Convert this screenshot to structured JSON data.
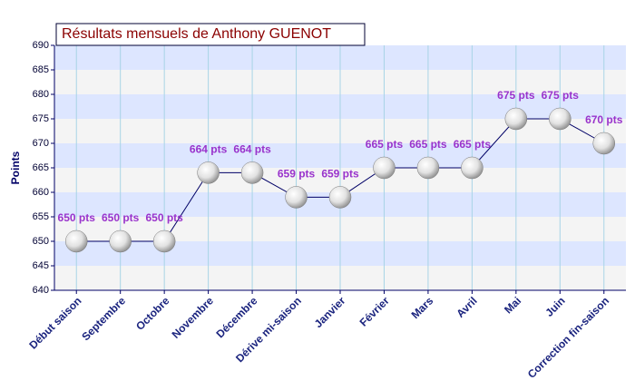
{
  "chart_data": {
    "type": "line",
    "title": "Résultats mensuels de Anthony GUENOT",
    "y_label": "Points",
    "categories": [
      "Début saison",
      "Septembre",
      "Octobre",
      "Novembre",
      "Décembre",
      "Dérive mi-saison",
      "Janvier",
      "Février",
      "Mars",
      "Avril",
      "Mai",
      "Juin",
      "Correction fin-saison"
    ],
    "values": [
      650,
      650,
      650,
      664,
      664,
      659,
      659,
      665,
      665,
      665,
      675,
      675,
      670
    ],
    "value_labels": [
      "650 pts",
      "650 pts",
      "650 pts",
      "664 pts",
      "664 pts",
      "659 pts",
      "659 pts",
      "665 pts",
      "665 pts",
      "665 pts",
      "675 pts",
      "675 pts",
      "670 pts"
    ],
    "color": "#000066",
    "ylim": [
      640,
      690
    ],
    "yticks": [
      640,
      645,
      650,
      655,
      660,
      665,
      670,
      675,
      680,
      685,
      690
    ],
    "grid": true
  }
}
